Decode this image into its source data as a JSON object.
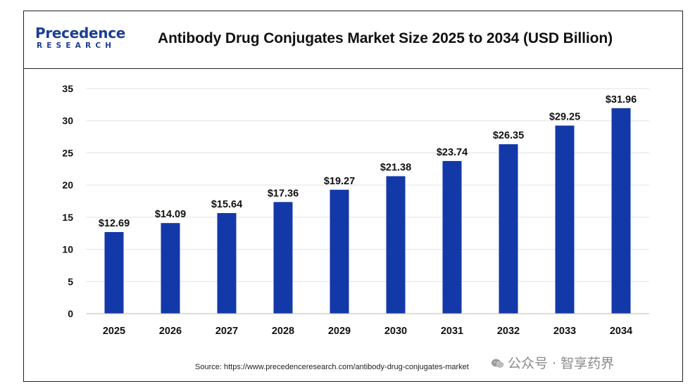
{
  "logo": {
    "main": "Precedence",
    "sub": "RESEARCH"
  },
  "title": "Antibody Drug Conjugates Market Size 2025 to 2034 (USD Billion)",
  "source": "Source: https://www.precedenceresearch.com/antibody-drug-conjugates-market",
  "watermark": "公众号 · 智享药界",
  "colors": {
    "bar": "#1338a8",
    "grid": "#e3e3e3",
    "text": "#111111"
  },
  "chart_data": {
    "type": "bar",
    "title": "Antibody Drug Conjugates Market Size 2025 to 2034 (USD Billion)",
    "categories": [
      "2025",
      "2026",
      "2027",
      "2028",
      "2029",
      "2030",
      "2031",
      "2032",
      "2033",
      "2034"
    ],
    "values": [
      12.69,
      14.09,
      15.64,
      17.36,
      19.27,
      21.38,
      23.74,
      26.35,
      29.25,
      31.96
    ],
    "data_labels": [
      "$12.69",
      "$14.09",
      "$15.64",
      "$17.36",
      "$19.27",
      "$21.38",
      "$23.74",
      "$26.35",
      "$29.25",
      "$31.96"
    ],
    "ylim": [
      0,
      35
    ],
    "yticks": [
      "0",
      "5",
      "10",
      "15",
      "20",
      "25",
      "30",
      "35"
    ],
    "xlabel": "",
    "ylabel": "",
    "grid": true,
    "legend": "none"
  }
}
